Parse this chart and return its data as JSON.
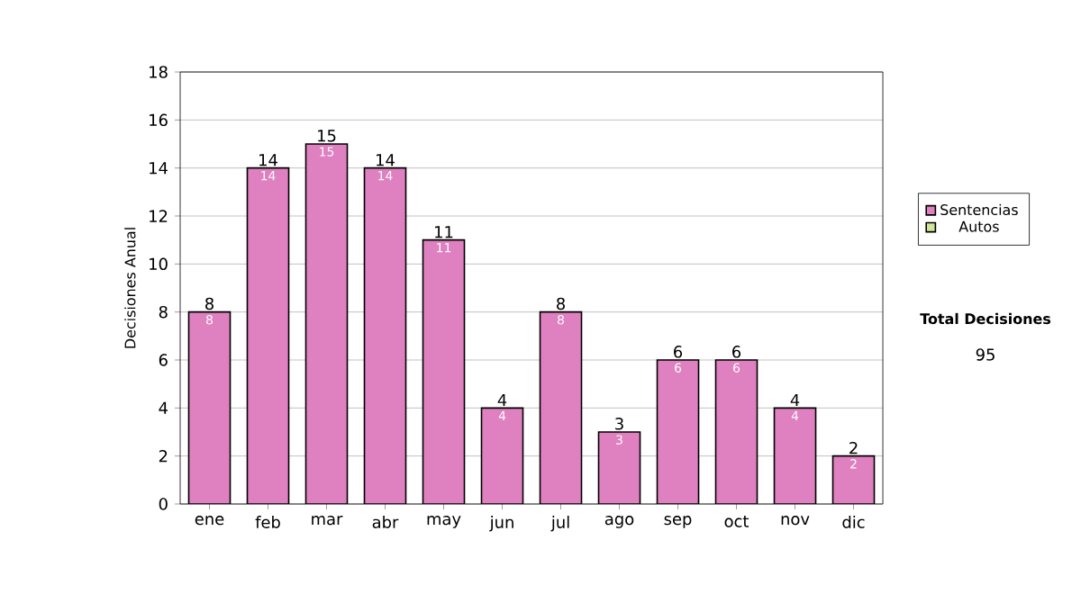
{
  "chart_data": {
    "type": "bar",
    "stacked": true,
    "ylabel": "Decisiones Anual",
    "categories": [
      "ene",
      "feb",
      "mar",
      "abr",
      "may",
      "jun",
      "jul",
      "ago",
      "sep",
      "oct",
      "nov",
      "dic"
    ],
    "series": [
      {
        "name": "Sentencias",
        "color": "#df80c0",
        "values": [
          8,
          14,
          15,
          14,
          11,
          4,
          8,
          3,
          6,
          6,
          4,
          2
        ],
        "value_labels": [
          "8",
          "14",
          "15",
          "14",
          "11",
          "4",
          "8",
          "3",
          "6",
          "6",
          "4",
          "2"
        ]
      },
      {
        "name": "Autos",
        "color": "#d4e59a",
        "values": [
          0,
          0,
          0,
          0,
          0,
          0,
          0,
          0,
          0,
          0,
          0,
          0
        ]
      }
    ],
    "totals": [
      "8",
      "14",
      "15",
      "14",
      "11",
      "4",
      "8",
      "3",
      "6",
      "6",
      "4",
      "2"
    ],
    "ylim": [
      0,
      18
    ],
    "yticks": [
      0,
      2,
      4,
      6,
      8,
      10,
      12,
      14,
      16,
      18
    ],
    "grid": "y",
    "legend": "right",
    "annotations": [
      "Total Decisiones",
      "95"
    ]
  }
}
